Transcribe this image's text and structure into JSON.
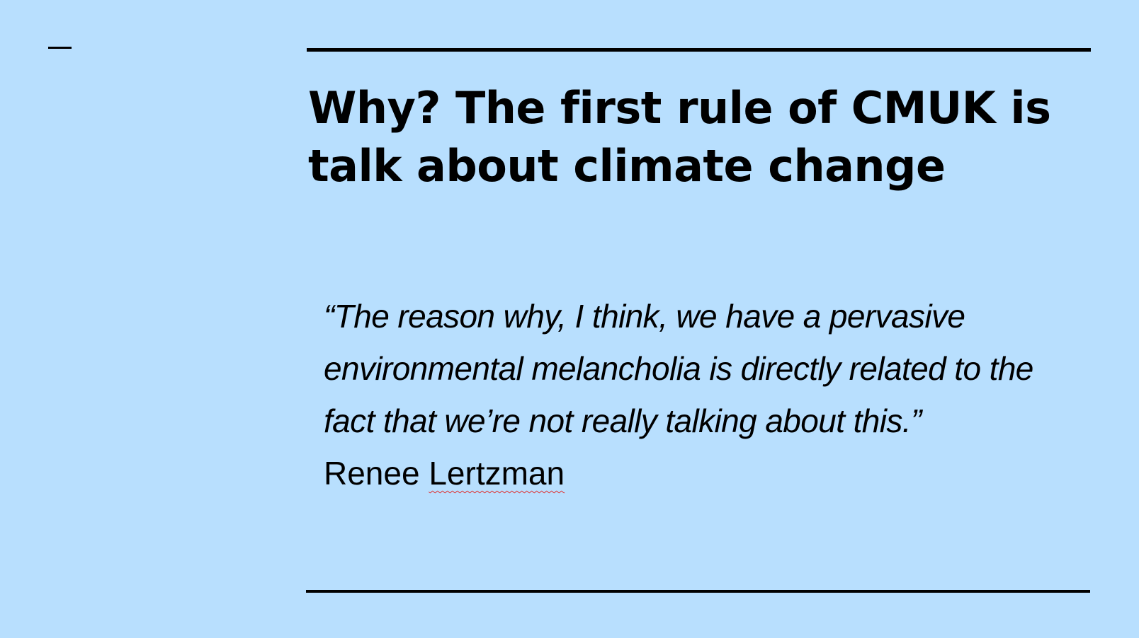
{
  "slide": {
    "title": "Why? The first rule of CMUK is talk about climate change",
    "quote": "“The reason why, I think, we have a pervasive environmental melancholia is directly related to the fact that we’re not really talking about this.”",
    "author_first": "Renee",
    "author_last": "Lertzman"
  },
  "colors": {
    "background": "#b8dffe",
    "text": "#000000",
    "spellcheck_underline": "#e03030"
  }
}
